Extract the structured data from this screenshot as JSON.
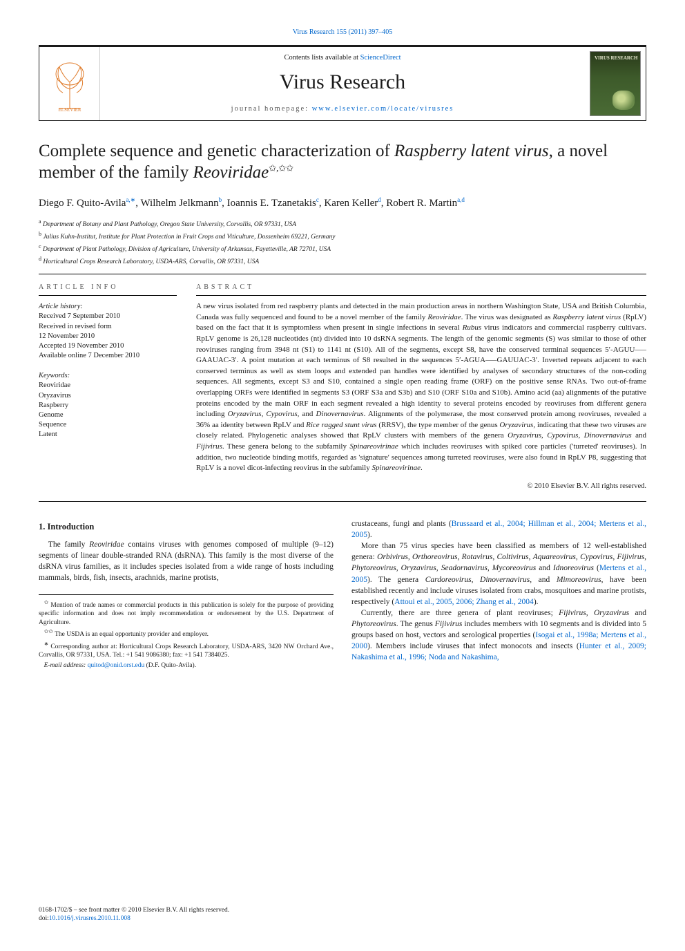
{
  "top_citation": "Virus Research 155 (2011) 397–405",
  "masthead": {
    "contents_prefix": "Contents lists available at ",
    "contents_link": "ScienceDirect",
    "journal": "Virus Research",
    "homepage_prefix": "journal homepage: ",
    "homepage_url": "www.elsevier.com/locate/virusres",
    "publisher_logo_label": "ELSEVIER",
    "cover_brand": "VIRUS RESEARCH"
  },
  "article": {
    "title_html": "Complete sequence and genetic characterization of <em>Raspberry latent virus</em>, a novel member of the family <em>Reoviridae</em>",
    "title_marks": "✩,✩✩",
    "authors_html": "Diego F. Quito-Avila<sup>a,∗</sup>, Wilhelm Jelkmann<sup>b</sup>, Ioannis E. Tzanetakis<sup>c</sup>, Karen Keller<sup>d</sup>, Robert R. Martin<sup>a,d</sup>",
    "affiliations": [
      {
        "key": "a",
        "text": "Department of Botany and Plant Pathology, Oregon State University, Corvallis, OR 97331, USA"
      },
      {
        "key": "b",
        "text": "Julius Kuhn-Institut, Institute for Plant Protection in Fruit Crops and Viticulture, Dossenheim 69221, Germany"
      },
      {
        "key": "c",
        "text": "Department of Plant Pathology, Division of Agriculture, University of Arkansas, Fayetteville, AR 72701, USA"
      },
      {
        "key": "d",
        "text": "Horticultural Crops Research Laboratory, USDA-ARS, Corvallis, OR 97331, USA"
      }
    ]
  },
  "info": {
    "heading": "ARTICLE INFO",
    "history_label": "Article history:",
    "history": [
      "Received 7 September 2010",
      "Received in revised form",
      "12 November 2010",
      "Accepted 19 November 2010",
      "Available online 7 December 2010"
    ],
    "keywords_label": "Keywords:",
    "keywords": [
      "Reoviridae",
      "Oryzavirus",
      "Raspberry",
      "Genome",
      "Sequence",
      "Latent"
    ]
  },
  "abstract": {
    "heading": "ABSTRACT",
    "text_html": "A new virus isolated from red raspberry plants and detected in the main production areas in northern Washington State, USA and British Columbia, Canada was fully sequenced and found to be a novel member of the family <em>Reoviridae</em>. The virus was designated as <em>Raspberry latent virus</em> (RpLV) based on the fact that it is symptomless when present in single infections in several <em>Rubus</em> virus indicators and commercial raspberry cultivars. RpLV genome is 26,128 nucleotides (nt) divided into 10 dsRNA segments. The length of the genomic segments (S) was similar to those of other reoviruses ranging from 3948 nt (S1) to 1141 nt (S10). All of the segments, except S8, have the conserved terminal sequences 5′-AGUU—–GAAUAC-3′. A point mutation at each terminus of S8 resulted in the sequences 5′-AGUA—–GAUUAC-3′. Inverted repeats adjacent to each conserved terminus as well as stem loops and extended pan handles were identified by analyses of secondary structures of the non-coding sequences. All segments, except S3 and S10, contained a single open reading frame (ORF) on the positive sense RNAs. Two out-of-frame overlapping ORFs were identified in segments S3 (ORF S3a and S3b) and S10 (ORF S10a and S10b). Amino acid (aa) alignments of the putative proteins encoded by the main ORF in each segment revealed a high identity to several proteins encoded by reoviruses from different genera including <em>Oryzavirus</em>, <em>Cypovirus</em>, and <em>Dinovernavirus</em>. Alignments of the polymerase, the most conserved protein among reoviruses, revealed a 36% aa identity between RpLV and <em>Rice ragged stunt virus</em> (RRSV), the type member of the genus <em>Oryzavirus</em>, indicating that these two viruses are closely related. Phylogenetic analyses showed that RpLV clusters with members of the genera <em>Oryzavirus</em>, <em>Cypovirus</em>, <em>Dinovernavirus</em> and <em>Fijivirus</em>. These genera belong to the subfamily <em>Spinareovirinae</em> which includes reoviruses with spiked core particles ('turreted' reoviruses). In addition, two nucleotide binding motifs, regarded as 'signature' sequences among turreted reoviruses, were also found in RpLV P8, suggesting that RpLV is a novel dicot-infecting reovirus in the subfamily <em>Spinareovirinae</em>.",
    "copyright": "© 2010 Elsevier B.V. All rights reserved."
  },
  "body": {
    "section_heading": "1. Introduction",
    "p1_html": "The family <em>Reoviridae</em> contains viruses with genomes composed of multiple (9–12) segments of linear double-stranded RNA (dsRNA). This family is the most diverse of the dsRNA virus families, as it includes species isolated from a wide range of hosts including mammals, birds, fish, insects, arachnids, marine protists,",
    "p1b_html": "crustaceans, fungi and plants (<a>Brussaard et al., 2004; Hillman et al., 2004; Mertens et al., 2005</a>).",
    "p2_html": "More than 75 virus species have been classified as members of 12 well-established genera: <em>Orbivirus</em>, <em>Orthoreovirus</em>, <em>Rotavirus</em>, <em>Coltivirus</em>, <em>Aquareovirus</em>, <em>Cypovirus</em>, <em>Fijivirus</em>, <em>Phytoreovirus</em>, <em>Oryzavirus</em>, <em>Seadornavirus</em>, <em>Mycoreovirus</em> and <em>Idnoreovirus</em> (<a>Mertens et al., 2005</a>). The genera <em>Cardoreovirus</em>, <em>Dinovernavirus</em>, and <em>Mimoreovirus</em>, have been established recently and include viruses isolated from crabs, mosquitoes and marine protists, respectively (<a>Attoui et al., 2005, 2006; Zhang et al., 2004</a>).",
    "p3_html": "Currently, there are three genera of plant reoviruses; <em>Fijivirus</em>, <em>Oryzavirus</em> and <em>Phytoreovirus</em>. The genus <em>Fijivirus</em> includes members with 10 segments and is divided into 5 groups based on host, vectors and serological properties (<a>Isogai et al., 1998a; Mertens et al., 2000</a>). Members include viruses that infect monocots and insects (<a>Hunter et al., 2009; Nakashima et al., 1996; Noda and Nakashima,</a>"
  },
  "footnotes": {
    "fn1_mark": "✩",
    "fn1": "Mention of trade names or commercial products in this publication is solely for the purpose of providing specific information and does not imply recommendation or endorsement by the U.S. Department of Agriculture.",
    "fn2_mark": "✩✩",
    "fn2": "The USDA is an equal opportunity provider and employer.",
    "corr_mark": "∗",
    "corr": "Corresponding author at: Horticultural Crops Research Laboratory, USDA-ARS, 3420 NW Orchard Ave., Corvallis, OR 97331, USA. Tel.: +1 541 9086380; fax: +1 541 7384025.",
    "email_label": "E-mail address:",
    "email": "quitod@onid.orst.edu",
    "email_who": "(D.F. Quito-Avila)."
  },
  "footer": {
    "left1": "0168-1702/$ – see front matter © 2010 Elsevier B.V. All rights reserved.",
    "left2_prefix": "doi:",
    "doi": "10.1016/j.virusres.2010.11.008"
  },
  "colors": {
    "link": "#0066cc",
    "rule": "#000000",
    "muted": "#555555"
  },
  "typography": {
    "body_pt": 11.5,
    "abstract_pt": 11,
    "title_pt": 25,
    "journal_pt": 30,
    "affil_pt": 9.5,
    "footnote_pt": 9.5
  }
}
